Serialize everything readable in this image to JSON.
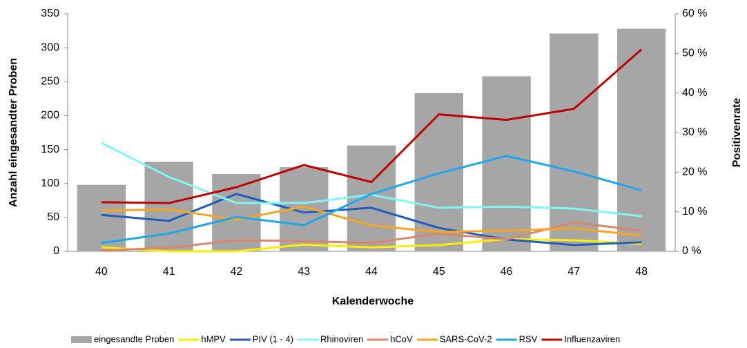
{
  "chart_data": {
    "type": "bar-line",
    "x_label": "Kalenderwoche",
    "y_label": "Anzahl eingesandter Proben",
    "y2_label": "Positivenrate",
    "categories": [
      "40",
      "41",
      "42",
      "43",
      "44",
      "45",
      "46",
      "47",
      "48"
    ],
    "ylim": [
      0,
      350
    ],
    "yticks": [
      0,
      50,
      100,
      150,
      200,
      250,
      300,
      350
    ],
    "y2lim": [
      0,
      60
    ],
    "y2ticks": [
      {
        "value": 0,
        "label": "0 %"
      },
      {
        "value": 10,
        "label": "10 %"
      },
      {
        "value": 20,
        "label": "20 %"
      },
      {
        "value": 30,
        "label": "30 %"
      },
      {
        "value": 40,
        "label": "40 %"
      },
      {
        "value": 50,
        "label": "50 %"
      },
      {
        "value": 60,
        "label": "60 %"
      }
    ],
    "series": [
      {
        "name": "eingesandte Proben",
        "type": "bar",
        "color": "#a6a6a6",
        "values": [
          98,
          132,
          114,
          124,
          156,
          233,
          258,
          321,
          328
        ]
      },
      {
        "name": "hMPV",
        "type": "line",
        "axis": "y2",
        "color": "#ffee00",
        "values": [
          1,
          0,
          0,
          1.7,
          1,
          1.6,
          3.1,
          2.8,
          1.9
        ]
      },
      {
        "name": "PIV (1 - 4)",
        "type": "line",
        "axis": "y2",
        "color": "#1f5cbf",
        "values": [
          9.2,
          7.7,
          14.5,
          9.8,
          11,
          5.9,
          3,
          1.6,
          2.3
        ]
      },
      {
        "name": "Rhinoviren",
        "type": "line",
        "axis": "y2",
        "color": "#7ff5f5",
        "values": [
          27.4,
          18.8,
          12.2,
          12.2,
          14.3,
          11,
          11.3,
          10.8,
          8.9
        ]
      },
      {
        "name": "hCoV",
        "type": "line",
        "axis": "y2",
        "color": "#d9876a",
        "values": [
          0.2,
          0.9,
          2.8,
          2.6,
          2.1,
          4.5,
          3,
          7.3,
          5.2
        ]
      },
      {
        "name": "SARS-CoV-2",
        "type": "line",
        "axis": "y2",
        "color": "#f5a623",
        "values": [
          10.3,
          10.6,
          8,
          11.3,
          6.5,
          4.9,
          5.2,
          5.8,
          4
        ]
      },
      {
        "name": "RSV",
        "type": "line",
        "axis": "y2",
        "color": "#1ea7e8",
        "values": [
          2.1,
          4.5,
          8.7,
          6.6,
          14.5,
          19.7,
          24.1,
          20.2,
          15.4
        ]
      },
      {
        "name": "Influenzaviren",
        "type": "line",
        "axis": "y2",
        "color": "#c00000",
        "values": [
          12.4,
          12.2,
          16.2,
          21.8,
          17.5,
          34.6,
          33.2,
          36,
          51
        ]
      }
    ]
  }
}
